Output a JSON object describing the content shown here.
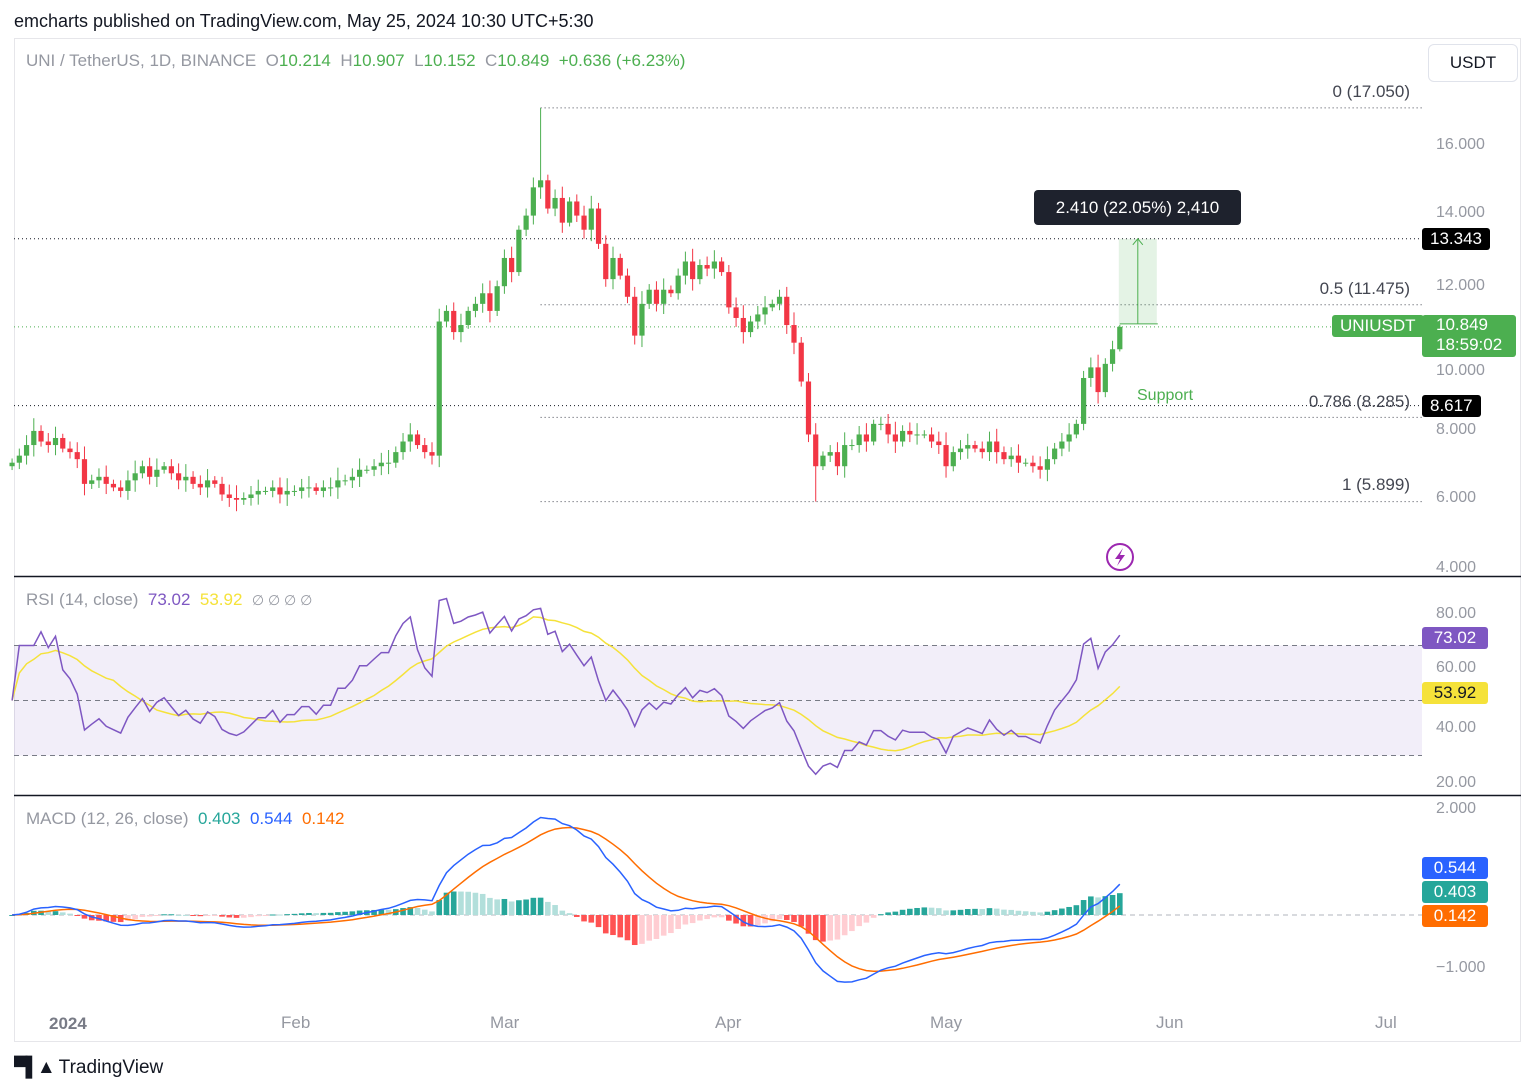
{
  "header": {
    "published": "emcharts published on TradingView.com, May 25, 2024 10:30 UTC+5:30",
    "currency_button": "USDT",
    "footer_logo": "TradingView"
  },
  "legend": {
    "symbol": "UNI / TetherUS, 1D, BINANCE",
    "o_label": "O",
    "o": "10.214",
    "h_label": "H",
    "h": "10.907",
    "l_label": "L",
    "l": "10.152",
    "c_label": "C",
    "c": "10.849",
    "change": "+0.636 (+6.23%)"
  },
  "price_axis": {
    "ticks": [
      "16.000",
      "14.000",
      "12.000",
      "10.000",
      "8.000",
      "6.000",
      "4.000"
    ],
    "last_symbol": "UNIUSDT",
    "last_price": "10.849",
    "countdown": "18:59:02",
    "h_line_1": "13.343",
    "h_line_2": "8.617"
  },
  "fib": {
    "levels": [
      {
        "label": "0 (17.050)",
        "value": 17.05
      },
      {
        "label": "0.5 (11.475)",
        "value": 11.475
      },
      {
        "label": "0.786 (8.285)",
        "value": 8.285
      },
      {
        "label": "1 (5.899)",
        "value": 5.899
      }
    ]
  },
  "annotations": {
    "measure": "2.410 (22.05%) 2,410",
    "measure_from": 10.933,
    "measure_to": 13.343,
    "support": "Support",
    "horizontal_lines": [
      13.343,
      8.617
    ]
  },
  "rsi": {
    "title": "RSI (14, close)",
    "value": "73.02",
    "ma": "53.92",
    "extra": "∅ ∅ ∅ ∅",
    "ticks": [
      "80.00",
      "60.00",
      "40.00",
      "20.00"
    ],
    "bands": [
      70,
      50,
      30
    ]
  },
  "macd": {
    "title": "MACD (12, 26, close)",
    "hist": "0.403",
    "macd": "0.544",
    "signal": "0.142",
    "ticks": [
      "2.000",
      "−1.000"
    ]
  },
  "time_axis": [
    "2024",
    "Feb",
    "Mar",
    "Apr",
    "May",
    "Jun",
    "Jul"
  ],
  "colors": {
    "up": "#4caf50",
    "down": "#f23645",
    "rsi": "#7e57c2",
    "rsi_ma": "#f5e23a",
    "macd": "#2962ff",
    "signal": "#ff6d00",
    "hist_up": "#26a69a",
    "hist_down": "#ff5252"
  },
  "chart_data": {
    "type": "candlestick",
    "symbol": "UNIUSDT",
    "interval": "1D",
    "ylim": [
      4,
      17.5
    ],
    "closes_by_month": [
      {
        "month": "2023-12",
        "first_day": 24,
        "closes": [
          7.0,
          7.2,
          7.5,
          7.9,
          7.6,
          7.5,
          7.7,
          7.4
        ]
      },
      {
        "month": "2024-01",
        "first_day": 1,
        "closes": [
          7.3,
          7.1,
          6.4,
          6.5,
          6.6,
          6.4,
          6.3,
          6.2,
          6.5,
          6.7,
          6.9,
          6.6,
          6.8,
          6.9,
          6.7,
          6.5,
          6.6,
          6.4,
          6.3,
          6.5,
          6.4,
          6.1,
          6.0,
          5.95,
          6.0,
          6.1,
          6.2,
          6.2,
          6.3,
          6.1,
          6.2
        ]
      },
      {
        "month": "2024-02",
        "first_day": 1,
        "closes": [
          6.2,
          6.3,
          6.3,
          6.2,
          6.3,
          6.3,
          6.5,
          6.5,
          6.6,
          6.8,
          6.8,
          6.9,
          7.0,
          7.0,
          7.3,
          7.6,
          7.8,
          7.5,
          7.3,
          7.2,
          11.0,
          11.3,
          10.7,
          10.9,
          11.3,
          11.5,
          11.8,
          11.3,
          12.0
        ]
      },
      {
        "month": "2024-03",
        "first_day": 1,
        "closes": [
          12.8,
          12.4,
          13.6,
          14.0,
          14.8,
          15.0,
          14.2,
          14.5,
          13.8,
          14.4,
          14.0,
          13.6,
          14.2,
          13.2,
          12.2,
          12.8,
          12.3,
          11.7,
          10.6,
          11.5,
          11.9,
          11.5,
          11.9,
          11.8,
          12.3,
          12.7,
          12.2,
          12.6,
          12.5,
          12.7,
          12.4
        ]
      },
      {
        "month": "2024-04",
        "first_day": 1,
        "closes": [
          11.4,
          11.1,
          10.7,
          11.0,
          11.2,
          11.4,
          11.5,
          11.7,
          10.9,
          10.4,
          9.3,
          7.8,
          6.9,
          7.2,
          7.3,
          6.9,
          7.5,
          7.5,
          7.8,
          7.6,
          8.1,
          8.1,
          7.8,
          7.6,
          7.9,
          7.8,
          7.8,
          7.8,
          7.6,
          7.5
        ]
      },
      {
        "month": "2024-05",
        "first_day": 1,
        "closes": [
          6.9,
          7.3,
          7.4,
          7.5,
          7.4,
          7.3,
          7.6,
          7.3,
          7.1,
          7.2,
          7.0,
          7.0,
          6.9,
          6.8,
          7.1,
          7.4,
          7.6,
          7.8,
          8.1,
          9.4,
          9.7,
          9.0,
          9.8,
          10.214,
          10.849
        ]
      }
    ],
    "extremes": [
      {
        "date": "2024-03-06",
        "high": 17.05
      },
      {
        "date": "2024-04-13",
        "low": 5.899
      },
      {
        "date": "2024-05-25",
        "open": 10.214,
        "high": 10.907,
        "low": 10.152
      }
    ]
  }
}
